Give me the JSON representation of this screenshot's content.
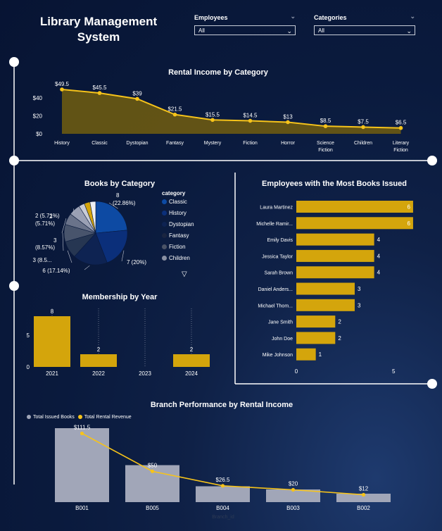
{
  "header": {
    "title_line1": "Library Management",
    "title_line2": "System"
  },
  "slicers": [
    {
      "label": "Employees",
      "value": "All"
    },
    {
      "label": "Categories",
      "value": "All"
    }
  ],
  "colors": {
    "gold": "#d4a50c",
    "line": "#f6c31a",
    "bar_gray": "#a1a6b8"
  },
  "chart_data": [
    {
      "type": "area",
      "title": "Rental Income by Category",
      "categories": [
        "History",
        "Classic",
        "Dystopian",
        "Fantasy",
        "Mystery",
        "Fiction",
        "Horror",
        "Science Fiction",
        "Children",
        "Literary Fiction"
      ],
      "values": [
        49.5,
        45.5,
        39,
        21.5,
        15.5,
        14.5,
        13,
        8.5,
        7.5,
        6.5
      ],
      "data_labels": [
        "$49.5",
        "$45.5",
        "$39",
        "$21.5",
        "$15.5",
        "$14.5",
        "$13",
        "$8.5",
        "$7.5",
        "$6.5"
      ],
      "yticks": [
        "$0",
        "$20",
        "$40"
      ],
      "ylim": [
        0,
        55
      ]
    },
    {
      "type": "pie",
      "title": "Books by Category",
      "legend_title": "category",
      "legend": [
        "Classic",
        "History",
        "Dystopian",
        "Fantasy",
        "Fiction",
        "Children"
      ],
      "slices": [
        {
          "value": 8,
          "label": "8 (22.86%)",
          "color": "#0d4aa3"
        },
        {
          "value": 7,
          "label": "7 (20%)",
          "color": "#0b2f7a"
        },
        {
          "value": 6,
          "label": "6 (17.14%)",
          "color": "#0e2352"
        },
        {
          "value": 3,
          "label": "3 (8.5...",
          "color": "#263652"
        },
        {
          "value": 3,
          "label": "3 (8.57%)",
          "color": "#48546c"
        },
        {
          "value": 2,
          "label": "2 (5.71%)",
          "color": "#6a738a"
        },
        {
          "value": 2,
          "label": "2 (5.71%)",
          "color": "#9aa0b4"
        },
        {
          "value": 1,
          "label": "",
          "color": "#c9ccd6"
        },
        {
          "value": 1,
          "label": "",
          "color": "#d4a50c"
        },
        {
          "value": 1,
          "label": "",
          "color": "#eef0f4"
        }
      ],
      "legend_colors": [
        "#0d4aa3",
        "#0b2f7a",
        "#0e2352",
        "#1a2540",
        "#4a5266",
        "#8a90a2"
      ]
    },
    {
      "type": "bar",
      "title": "Employees with the Most Books Issued",
      "orientation": "horizontal",
      "categories": [
        "Laura Martinez",
        "Michelle Ramir...",
        "Emily Davis",
        "Jessica Taylor",
        "Sarah Brown",
        "Daniel Anders...",
        "Michael Thom...",
        "Jane Smith",
        "John Doe",
        "Mike Johnson"
      ],
      "values": [
        6,
        6,
        4,
        4,
        4,
        3,
        3,
        2,
        2,
        1
      ],
      "xticks": [
        "0",
        "5"
      ],
      "xlim": [
        0,
        6.4
      ]
    },
    {
      "type": "bar",
      "title": "Membership by Year",
      "categories": [
        "2021",
        "2022",
        "2023",
        "2024"
      ],
      "values": [
        8,
        2,
        null,
        2
      ],
      "data_labels": [
        "8",
        "2",
        "",
        "2"
      ],
      "yticks": [
        "0",
        "5"
      ],
      "ylim": [
        0,
        9
      ]
    },
    {
      "type": "bar",
      "title": "Branch Performance by Rental Income",
      "xlabel": "Branch_id",
      "categories": [
        "B001",
        "B005",
        "B004",
        "B003",
        "B002"
      ],
      "series": [
        {
          "name": "Total Issued Books",
          "values": [
            14,
            7,
            3,
            2.4,
            1.6
          ]
        },
        {
          "name": "Total Rental Revenue",
          "values": [
            111.5,
            50,
            26.5,
            20,
            12
          ],
          "data_labels": [
            "$111.5",
            "$50",
            "$26.5",
            "$20",
            "$12"
          ]
        }
      ]
    }
  ]
}
